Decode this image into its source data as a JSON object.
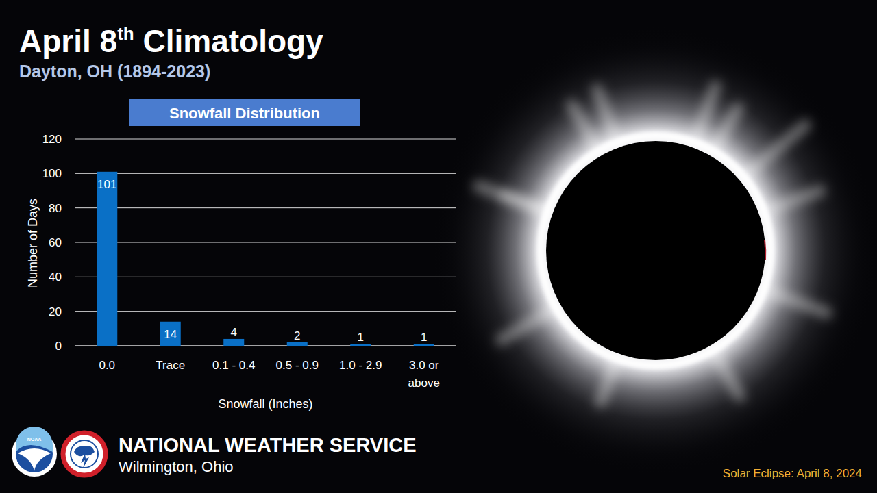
{
  "header": {
    "title": "April 8th Climatology",
    "subtitle": "Dayton, OH (1894-2023)"
  },
  "chart_data": {
    "type": "bar",
    "title": "Snowfall Distribution",
    "categories": [
      "0.0",
      "Trace",
      "0.1 - 0.4",
      "0.5 - 0.9",
      "1.0 - 2.9",
      "3.0 or above"
    ],
    "values": [
      101,
      14,
      4,
      2,
      1,
      1
    ],
    "color": "#0a70c6",
    "ylim": [
      0,
      120
    ],
    "yticks": [
      0,
      20,
      40,
      60,
      80,
      100,
      120
    ],
    "grid": true,
    "data_labels": true,
    "x_label": "Snowfall (Inches)",
    "y_label": "Number of Days"
  },
  "footer": {
    "logo_text": "NOAA",
    "agency": "NATIONAL WEATHER SERVICE",
    "office": "Wilmington, Ohio",
    "note": "Solar Eclipse: April 8, 2024"
  }
}
